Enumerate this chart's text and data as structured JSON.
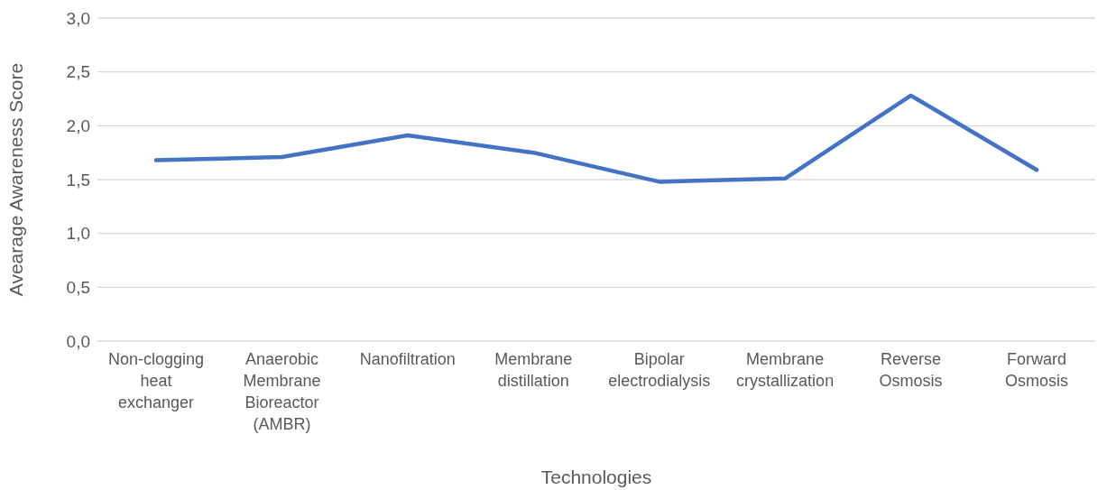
{
  "chart_data": {
    "type": "line",
    "xlabel": "Technologies",
    "ylabel": "Avearage Awareness Score",
    "categories": [
      "Non-clogging heat exchanger",
      "Anaerobic Membrane Bioreactor (AMBR)",
      "Nanofiltration",
      "Membrane distillation",
      "Bipolar electrodialysis",
      "Membrane crystallization",
      "Reverse Osmosis",
      "Forward Osmosis"
    ],
    "series": [
      {
        "color": "#4472c4",
        "values": [
          1.68,
          1.71,
          1.91,
          1.75,
          1.48,
          1.51,
          2.28,
          1.59
        ]
      }
    ],
    "ylim": [
      0,
      3
    ],
    "yticks": [
      {
        "value": 0,
        "label": "0,0"
      },
      {
        "value": 0.5,
        "label": "0,5"
      },
      {
        "value": 1,
        "label": "1,0"
      },
      {
        "value": 1.5,
        "label": "1,5"
      },
      {
        "value": 2,
        "label": "2,0"
      },
      {
        "value": 2.5,
        "label": "2,5"
      },
      {
        "value": 3,
        "label": "3,0"
      }
    ],
    "grid": "y",
    "marker": "none",
    "line_style": "solid",
    "legend": false
  }
}
